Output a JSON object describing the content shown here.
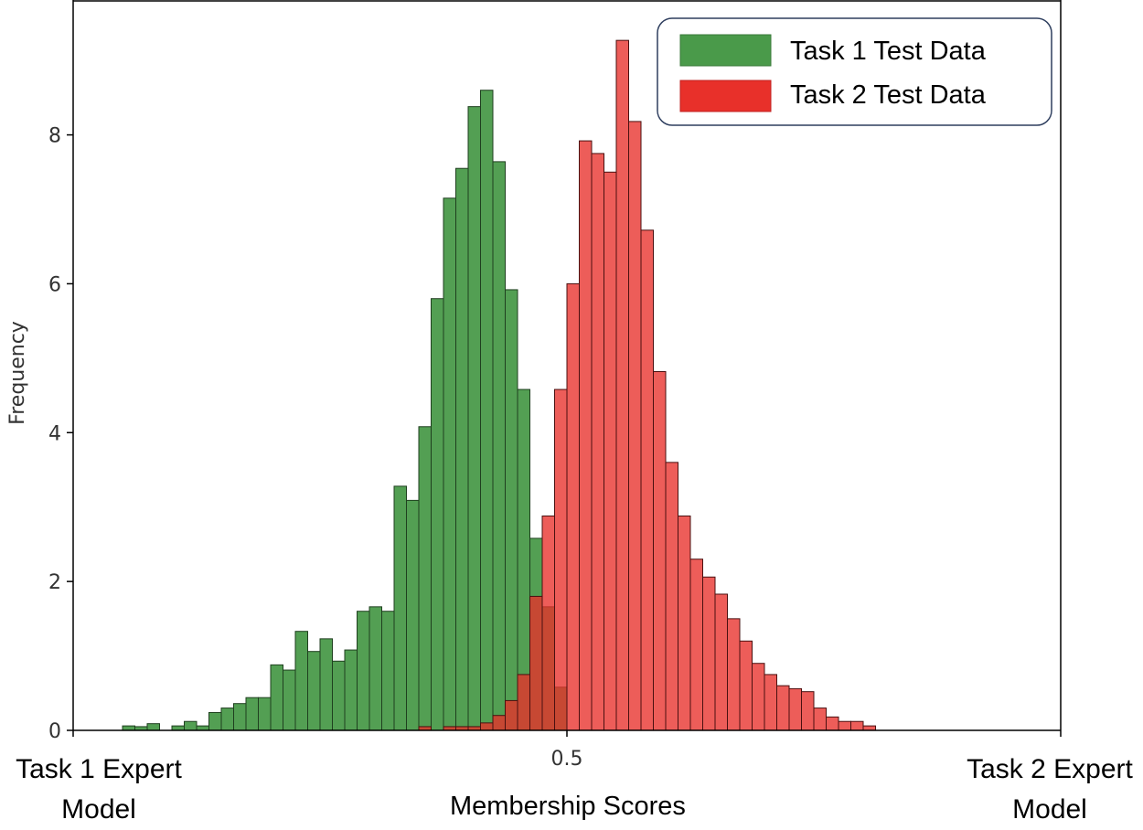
{
  "chart_data": {
    "type": "bar",
    "xlabel": "Membership Scores",
    "ylabel": "Frequency",
    "xlim": [
      0,
      1
    ],
    "ylim": [
      0,
      9.8
    ],
    "x_ticks": [
      {
        "value": 0.5,
        "label": "0.5"
      }
    ],
    "y_ticks": [
      0,
      2,
      4,
      6,
      8
    ],
    "grid": false,
    "legend_position": "top-right",
    "bin_width": 0.0125,
    "x_end_labels": {
      "left": [
        "Task 1 Expert",
        "Model"
      ],
      "right": [
        "Task 2 Expert",
        "Model"
      ]
    },
    "series": [
      {
        "name": "Task 1 Test Data",
        "color": "#4a9a4a",
        "bins": [
          [
            0.05625,
            0.06
          ],
          [
            0.06875,
            0.05
          ],
          [
            0.08125,
            0.09
          ],
          [
            0.10625,
            0.06
          ],
          [
            0.11875,
            0.12
          ],
          [
            0.13125,
            0.06
          ],
          [
            0.14375,
            0.24
          ],
          [
            0.15625,
            0.3
          ],
          [
            0.16875,
            0.36
          ],
          [
            0.18125,
            0.44
          ],
          [
            0.19375,
            0.44
          ],
          [
            0.20625,
            0.88
          ],
          [
            0.21875,
            0.81
          ],
          [
            0.23125,
            1.33
          ],
          [
            0.24375,
            1.06
          ],
          [
            0.25625,
            1.23
          ],
          [
            0.26875,
            0.93
          ],
          [
            0.28125,
            1.08
          ],
          [
            0.29375,
            1.6
          ],
          [
            0.30625,
            1.66
          ],
          [
            0.31875,
            1.6
          ],
          [
            0.33125,
            3.28
          ],
          [
            0.34375,
            3.09
          ],
          [
            0.35625,
            4.08
          ],
          [
            0.36875,
            5.8
          ],
          [
            0.38125,
            7.15
          ],
          [
            0.39375,
            7.55
          ],
          [
            0.40625,
            8.38
          ],
          [
            0.41875,
            8.6
          ],
          [
            0.43125,
            7.64
          ],
          [
            0.44375,
            5.92
          ],
          [
            0.45625,
            4.58
          ],
          [
            0.46875,
            2.58
          ],
          [
            0.48125,
            1.66
          ],
          [
            0.49375,
            0.58
          ]
        ]
      },
      {
        "name": "Task 2 Test Data",
        "color": "#e8302a",
        "bins": [
          [
            0.35625,
            0.05
          ],
          [
            0.38125,
            0.05
          ],
          [
            0.39375,
            0.05
          ],
          [
            0.40625,
            0.05
          ],
          [
            0.41875,
            0.1
          ],
          [
            0.43125,
            0.2
          ],
          [
            0.44375,
            0.4
          ],
          [
            0.45625,
            0.75
          ],
          [
            0.46875,
            1.8
          ],
          [
            0.48125,
            2.88
          ],
          [
            0.49375,
            4.58
          ],
          [
            0.50625,
            6.0
          ],
          [
            0.51875,
            7.92
          ],
          [
            0.53125,
            7.75
          ],
          [
            0.54375,
            7.5
          ],
          [
            0.55625,
            9.27
          ],
          [
            0.56875,
            8.18
          ],
          [
            0.58125,
            6.72
          ],
          [
            0.59375,
            4.82
          ],
          [
            0.60625,
            3.6
          ],
          [
            0.61875,
            2.88
          ],
          [
            0.63125,
            2.3
          ],
          [
            0.64375,
            2.06
          ],
          [
            0.65625,
            1.83
          ],
          [
            0.66875,
            1.5
          ],
          [
            0.68125,
            1.2
          ],
          [
            0.69375,
            0.9
          ],
          [
            0.70625,
            0.75
          ],
          [
            0.71875,
            0.6
          ],
          [
            0.73125,
            0.56
          ],
          [
            0.74375,
            0.52
          ],
          [
            0.75625,
            0.3
          ],
          [
            0.76875,
            0.18
          ],
          [
            0.78125,
            0.12
          ],
          [
            0.79375,
            0.12
          ],
          [
            0.80625,
            0.06
          ]
        ]
      }
    ]
  }
}
